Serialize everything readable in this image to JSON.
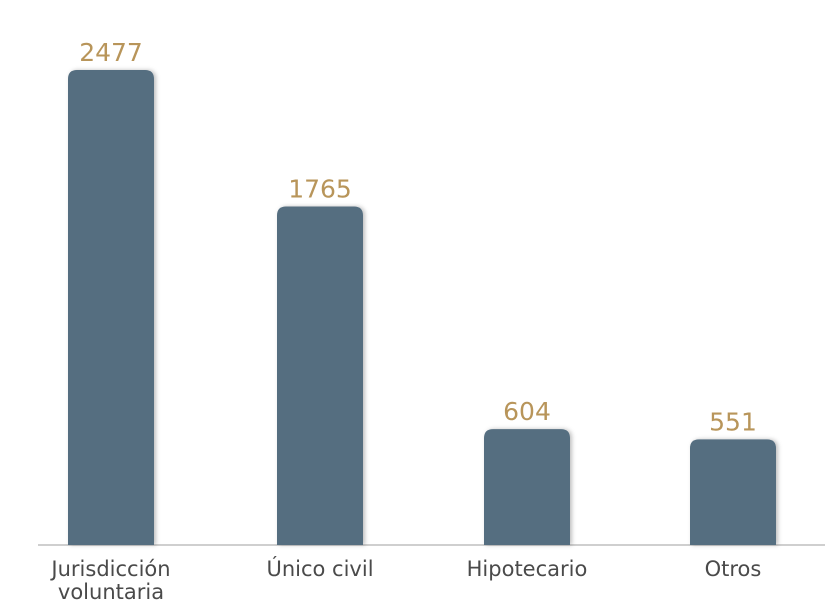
{
  "chart_data": {
    "type": "bar",
    "categories": [
      "Jurisdicción voluntaria",
      "Único civil",
      "Hipotecario",
      "Otros"
    ],
    "values": [
      2477,
      1765,
      604,
      551
    ],
    "color": "#546e80",
    "label_color": "#b8955a"
  }
}
